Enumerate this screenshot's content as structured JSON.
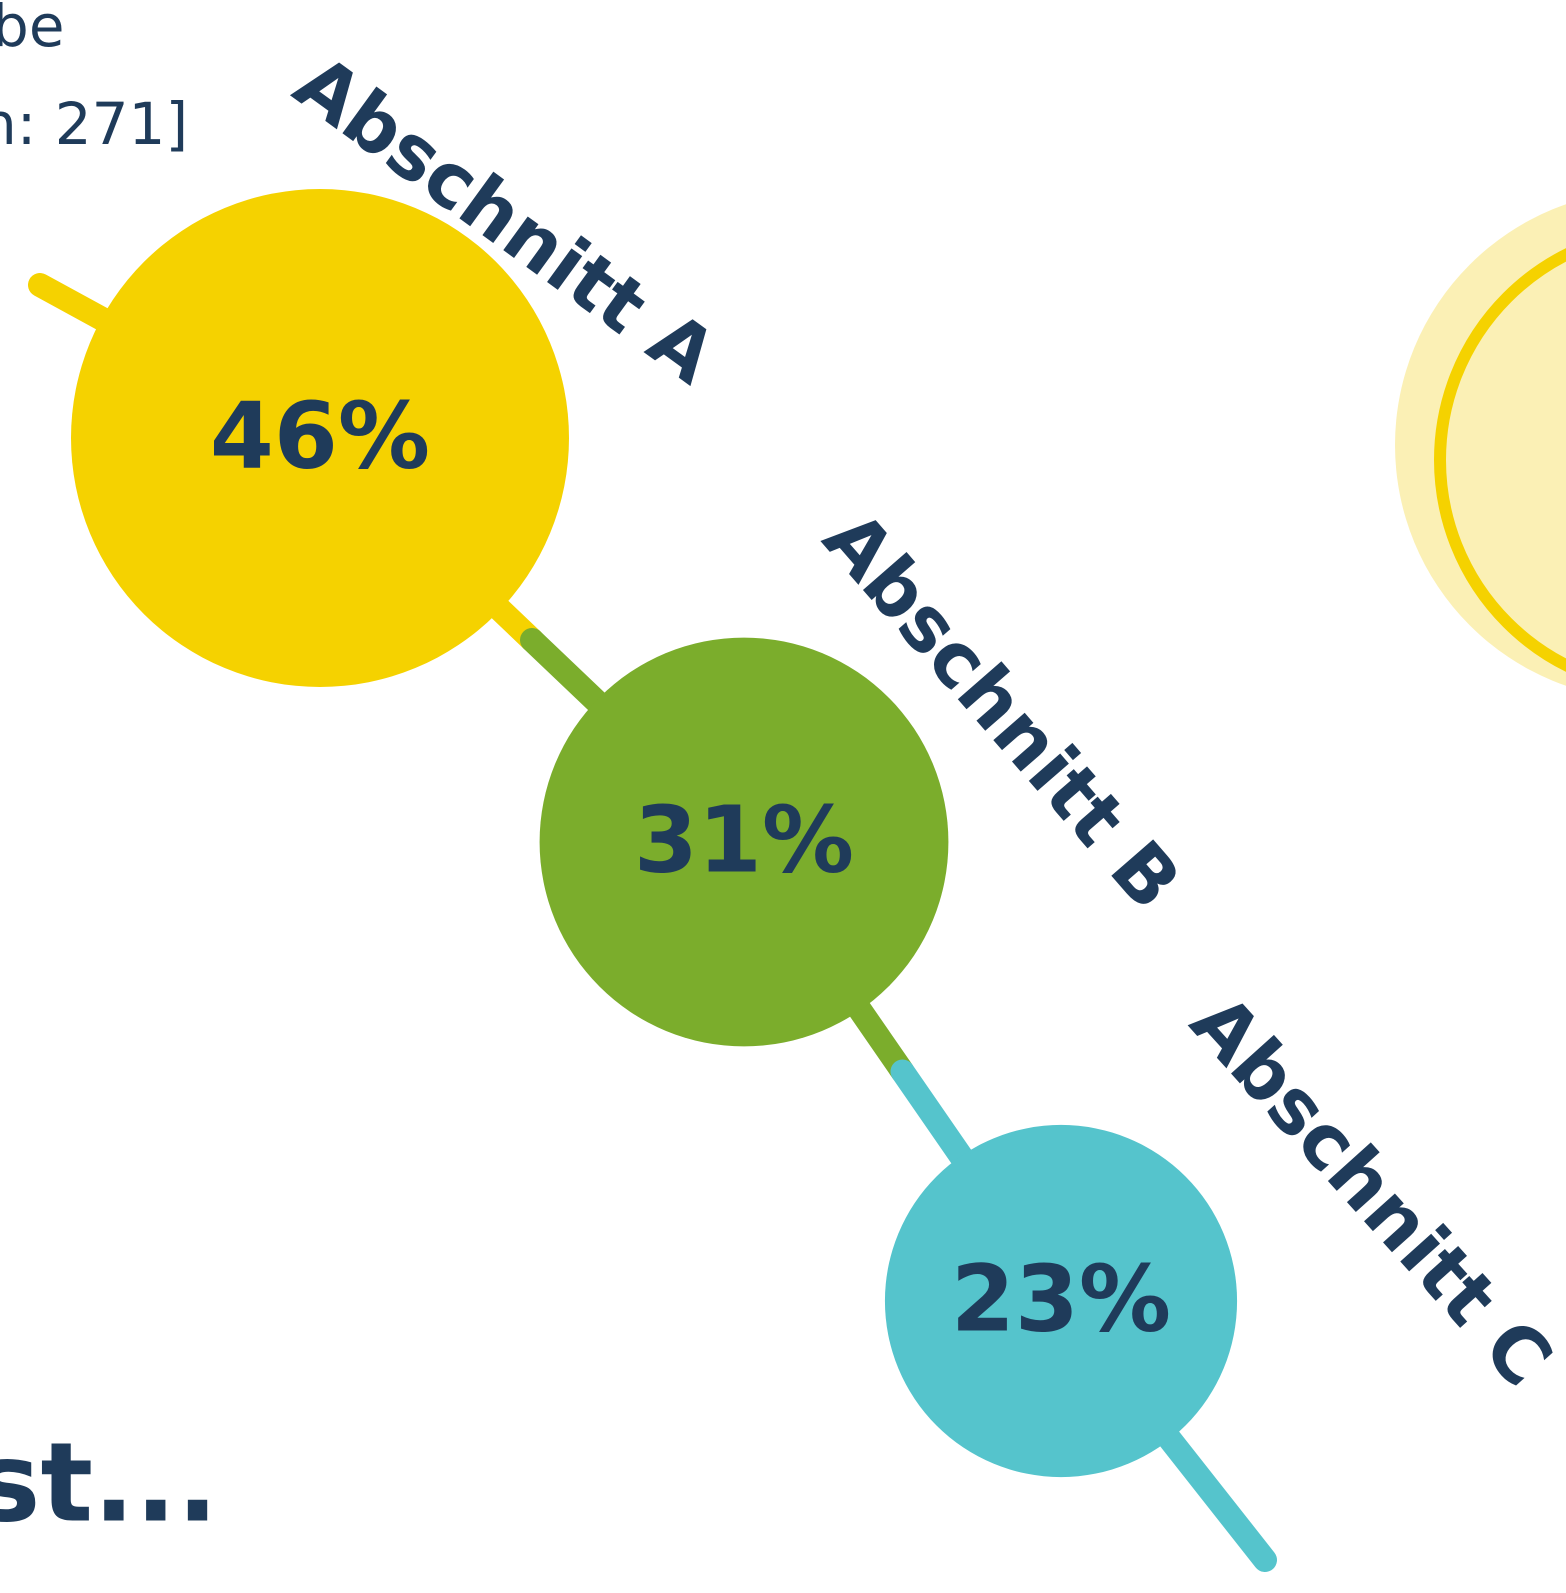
{
  "chart_data": {
    "type": "bubble",
    "categories": [
      "Abschnitt A",
      "Abschnitt B",
      "Abschnitt C"
    ],
    "values": [
      46,
      31,
      23
    ],
    "value_labels": [
      "46%",
      "31%",
      "23%"
    ],
    "colors": [
      "#f5d200",
      "#7bad2c",
      "#55c4cc"
    ],
    "annotations": [
      "be",
      "n: 271]",
      "st..."
    ]
  }
}
